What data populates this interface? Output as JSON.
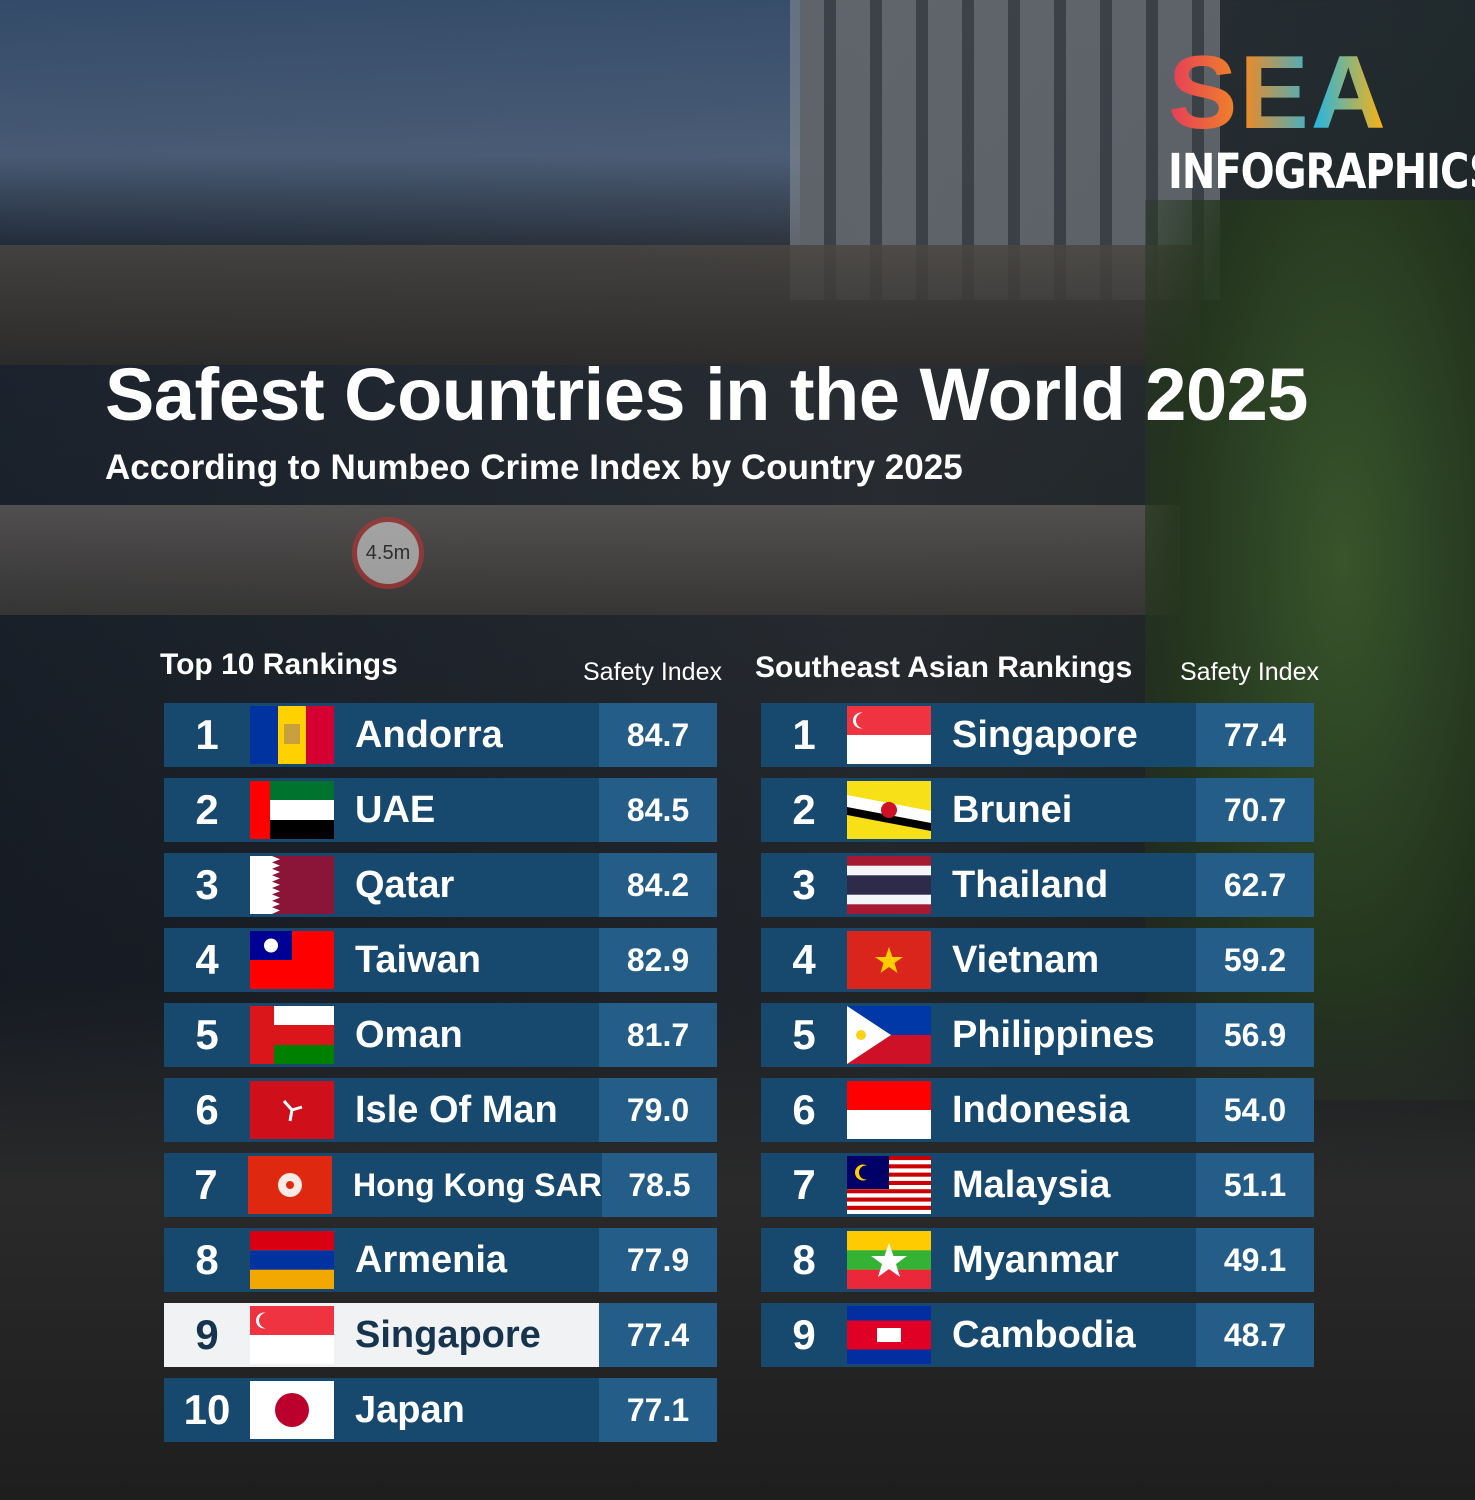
{
  "logo": {
    "word": "SEA",
    "sub": "INFOGRAPHICS"
  },
  "title": "Safest Countries in the World 2025",
  "subtitle": "According to Numbeo Crime Index by Country 2025",
  "background": {
    "sign_text": "4.5m"
  },
  "left": {
    "heading": "Top 10 Rankings",
    "index_label": "Safety Index",
    "rows": [
      {
        "rank": "1",
        "country": "Andorra",
        "value": "84.7",
        "flag": "andorra-flag"
      },
      {
        "rank": "2",
        "country": "UAE",
        "value": "84.5",
        "flag": "uae-flag"
      },
      {
        "rank": "3",
        "country": "Qatar",
        "value": "84.2",
        "flag": "qatar-flag"
      },
      {
        "rank": "4",
        "country": "Taiwan",
        "value": "82.9",
        "flag": "taiwan-flag"
      },
      {
        "rank": "5",
        "country": "Oman",
        "value": "81.7",
        "flag": "oman-flag"
      },
      {
        "rank": "6",
        "country": "Isle Of Man",
        "value": "79.0",
        "flag": "isle-of-man-flag"
      },
      {
        "rank": "7",
        "country": "Hong Kong SAR",
        "value": "78.5",
        "flag": "hong-kong-flag"
      },
      {
        "rank": "8",
        "country": "Armenia",
        "value": "77.9",
        "flag": "armenia-flag"
      },
      {
        "rank": "9",
        "country": "Singapore",
        "value": "77.4",
        "flag": "singapore-flag"
      },
      {
        "rank": "10",
        "country": "Japan",
        "value": "77.1",
        "flag": "japan-flag"
      }
    ]
  },
  "right": {
    "heading": "Southeast Asian Rankings",
    "index_label": "Safety Index",
    "rows": [
      {
        "rank": "1",
        "country": "Singapore",
        "value": "77.4",
        "flag": "singapore-flag"
      },
      {
        "rank": "2",
        "country": "Brunei",
        "value": "70.7",
        "flag": "brunei-flag"
      },
      {
        "rank": "3",
        "country": "Thailand",
        "value": "62.7",
        "flag": "thailand-flag"
      },
      {
        "rank": "4",
        "country": "Vietnam",
        "value": "59.2",
        "flag": "vietnam-flag"
      },
      {
        "rank": "5",
        "country": "Philippines",
        "value": "56.9",
        "flag": "philippines-flag"
      },
      {
        "rank": "6",
        "country": "Indonesia",
        "value": "54.0",
        "flag": "indonesia-flag"
      },
      {
        "rank": "7",
        "country": "Malaysia",
        "value": "51.1",
        "flag": "malaysia-flag"
      },
      {
        "rank": "8",
        "country": "Myanmar",
        "value": "49.1",
        "flag": "myanmar-flag"
      },
      {
        "rank": "9",
        "country": "Cambodia",
        "value": "48.7",
        "flag": "cambodia-flag"
      }
    ]
  },
  "colors": {
    "row_bg": "#17486e",
    "value_bg": "#255d89",
    "highlight_bg": "#f1f2f4",
    "highlight_text": "#17344f"
  }
}
